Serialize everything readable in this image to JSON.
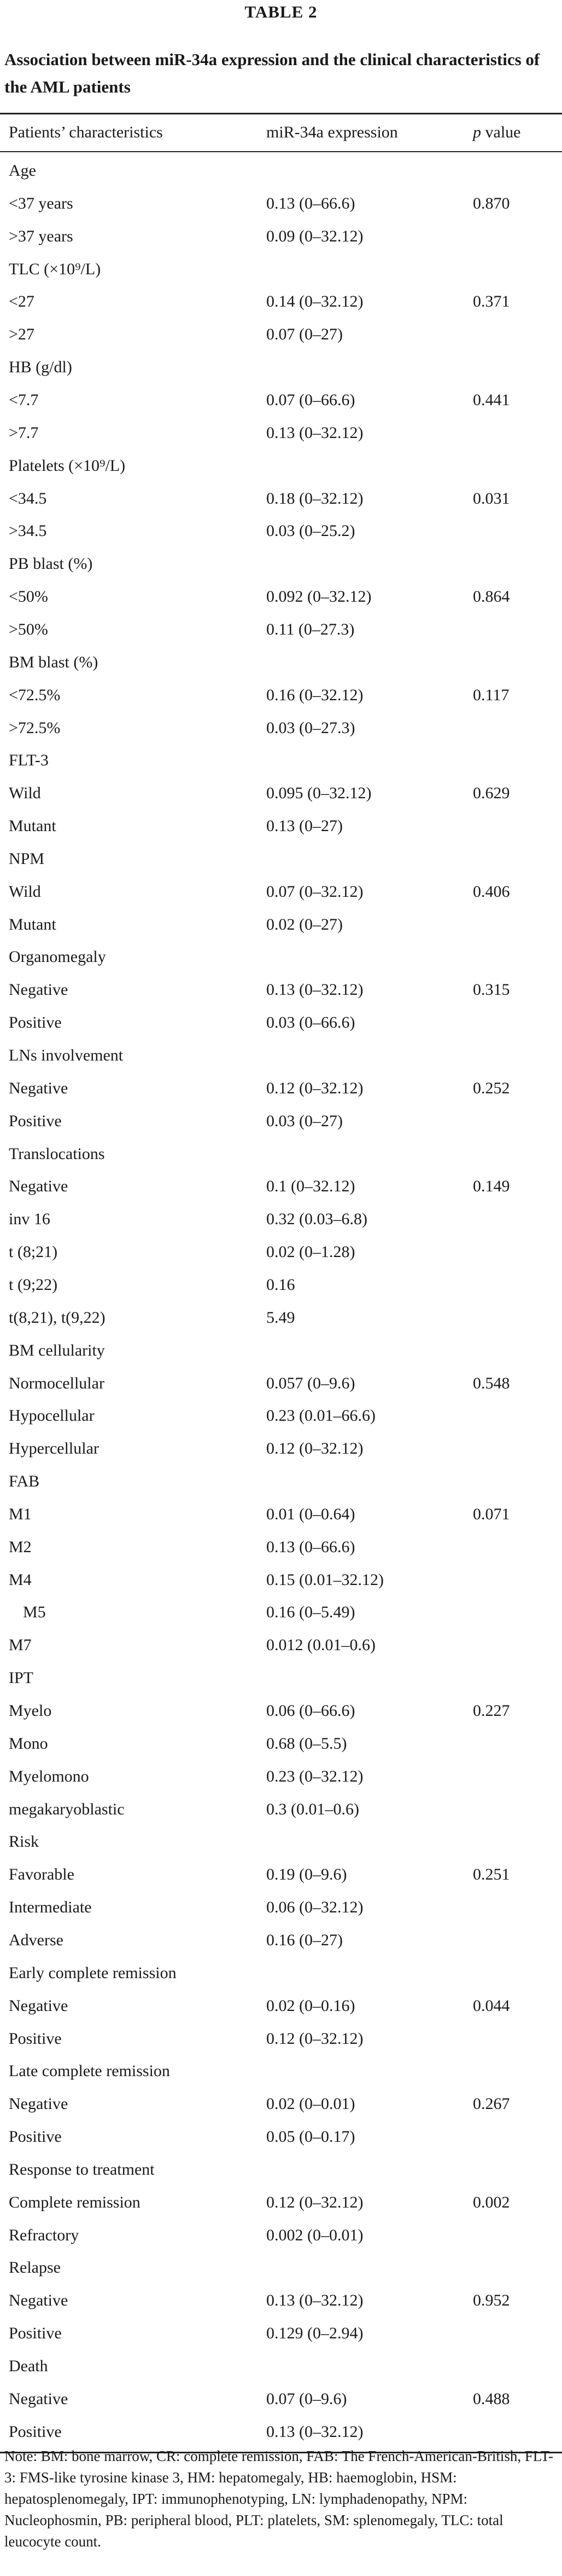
{
  "table_label": "TABLE 2",
  "caption": "Association between miR-34a expression and the clinical characteristics of the AML patients",
  "header": {
    "col1": "Patients’ characteristics",
    "col2": "miR-34a expression",
    "col3_italic": "p",
    "col3_rest": " value"
  },
  "rows": [
    [
      "Age",
      "",
      ""
    ],
    [
      "<37 years",
      "0.13 (0–66.6)",
      "0.870"
    ],
    [
      ">37 years",
      "0.09 (0–32.12)",
      ""
    ],
    [
      "TLC (×10⁹/L)",
      "",
      ""
    ],
    [
      "<27",
      "0.14 (0–32.12)",
      "0.371"
    ],
    [
      ">27",
      "0.07 (0–27)",
      ""
    ],
    [
      "HB (g/dl)",
      "",
      ""
    ],
    [
      "<7.7",
      "0.07 (0–66.6)",
      "0.441"
    ],
    [
      ">7.7",
      "0.13 (0–32.12)",
      ""
    ],
    [
      "Platelets (×10⁹/L)",
      "",
      ""
    ],
    [
      "<34.5",
      "0.18 (0–32.12)",
      "0.031"
    ],
    [
      ">34.5",
      "0.03 (0–25.2)",
      ""
    ],
    [
      "PB blast (%)",
      "",
      ""
    ],
    [
      "<50%",
      "0.092 (0–32.12)",
      "0.864"
    ],
    [
      ">50%",
      "0.11 (0–27.3)",
      ""
    ],
    [
      "BM blast (%)",
      "",
      ""
    ],
    [
      "<72.5%",
      "0.16 (0–32.12)",
      "0.117"
    ],
    [
      ">72.5%",
      "0.03 (0–27.3)",
      ""
    ],
    [
      "FLT-3",
      "",
      ""
    ],
    [
      "Wild",
      "0.095 (0–32.12)",
      "0.629"
    ],
    [
      "Mutant",
      "0.13 (0–27)",
      ""
    ],
    [
      "NPM",
      "",
      ""
    ],
    [
      "Wild",
      "0.07 (0–32.12)",
      "0.406"
    ],
    [
      "Mutant",
      "0.02 (0–27)",
      ""
    ],
    [
      "Organomegaly",
      "",
      ""
    ],
    [
      "Negative",
      "0.13 (0–32.12)",
      "0.315"
    ],
    [
      "Positive",
      "0.03 (0–66.6)",
      ""
    ],
    [
      "LNs involvement",
      "",
      ""
    ],
    [
      "Negative",
      "0.12 (0–32.12)",
      "0.252"
    ],
    [
      "Positive",
      "0.03 (0–27)",
      ""
    ],
    [
      "Translocations",
      "",
      ""
    ],
    [
      "Negative",
      "0.1 (0–32.12)",
      "0.149"
    ],
    [
      "inv 16",
      "0.32 (0.03–6.8)",
      ""
    ],
    [
      "t (8;21)",
      "0.02 (0–1.28)",
      ""
    ],
    [
      "t (9;22)",
      "0.16",
      ""
    ],
    [
      "t(8,21), t(9,22)",
      "5.49",
      ""
    ],
    [
      "BM cellularity",
      "",
      ""
    ],
    [
      "Normocellular",
      "0.057 (0–9.6)",
      "0.548"
    ],
    [
      "Hypocellular",
      "0.23 (0.01–66.6)",
      ""
    ],
    [
      "Hypercellular",
      "0.12 (0–32.12)",
      ""
    ],
    [
      "FAB",
      "",
      ""
    ],
    [
      "M1",
      "0.01 (0–0.64)",
      "0.071"
    ],
    [
      "M2",
      "0.13 (0–66.6)",
      ""
    ],
    [
      "M4",
      "0.15 (0.01–32.12)",
      ""
    ],
    [
      "M5",
      "0.16 (0–5.49)",
      ""
    ],
    [
      "M7",
      "0.012 (0.01–0.6)",
      ""
    ],
    [
      "IPT",
      "",
      ""
    ],
    [
      "Myelo",
      "0.06 (0–66.6)",
      "0.227"
    ],
    [
      "Mono",
      "0.68 (0–5.5)",
      ""
    ],
    [
      "Myelomono",
      "0.23 (0–32.12)",
      ""
    ],
    [
      "megakaryoblastic",
      "0.3 (0.01–0.6)",
      ""
    ],
    [
      "Risk",
      "",
      ""
    ],
    [
      "Favorable",
      "0.19 (0–9.6)",
      "0.251"
    ],
    [
      "Intermediate",
      "0.06 (0–32.12)",
      ""
    ],
    [
      "Adverse",
      "0.16 (0–27)",
      ""
    ],
    [
      "Early complete remission",
      "",
      ""
    ],
    [
      "Negative",
      "0.02 (0–0.16)",
      "0.044"
    ],
    [
      "Positive",
      "0.12 (0–32.12)",
      ""
    ],
    [
      "Late complete remission",
      "",
      ""
    ],
    [
      "Negative",
      "0.02 (0–0.01)",
      "0.267"
    ],
    [
      "Positive",
      "0.05 (0–0.17)",
      ""
    ],
    [
      "Response to treatment",
      "",
      ""
    ],
    [
      "Complete remission",
      "0.12 (0–32.12)",
      "0.002"
    ],
    [
      "Refractory",
      "0.002 (0–0.01)",
      ""
    ],
    [
      "Relapse",
      "",
      ""
    ],
    [
      "Negative",
      "0.13 (0–32.12)",
      "0.952"
    ],
    [
      "Positive",
      "0.129 (0–2.94)",
      ""
    ],
    [
      "Death",
      "",
      ""
    ],
    [
      "Negative",
      "0.07 (0–9.6)",
      "0.488"
    ],
    [
      "Positive",
      "0.13 (0–32.12)",
      ""
    ]
  ],
  "note": "Note: BM: bone marrow, CR: complete remission, FAB: The French-American-British, FLT-3: FMS-like tyrosine kinase 3, HM: hepatomegaly, HB: haemoglobin, HSM: hepatosplenomegaly, IPT: immunophenotyping, LN: lymphadenopathy, NPM: Nucleophosmin, PB: peripheral blood, PLT: platelets, SM: splenomegaly, TLC: total leucocyte count."
}
